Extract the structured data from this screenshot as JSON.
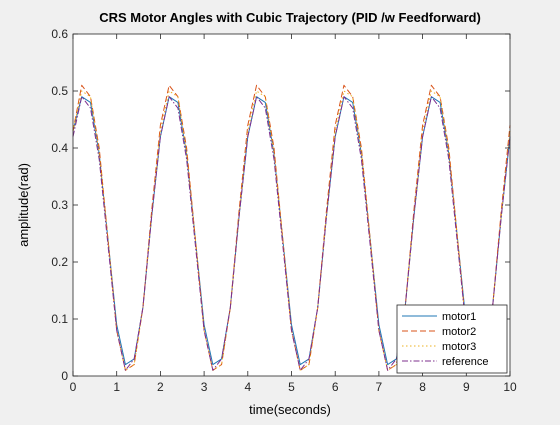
{
  "chart_data": {
    "type": "line",
    "title": "CRS Motor Angles with Cubic Trajectory (PID /w Feedforward)",
    "xlabel": "time(seconds)",
    "ylabel": "amplitude(rad)",
    "xlim": [
      0,
      10
    ],
    "ylim": [
      0,
      0.6
    ],
    "x_ticks": [
      0,
      1,
      2,
      3,
      4,
      5,
      6,
      7,
      8,
      9,
      10
    ],
    "x_tick_labels": [
      "0",
      "1",
      "2",
      "3",
      "4",
      "5",
      "6",
      "7",
      "8",
      "9",
      "10"
    ],
    "y_ticks": [
      0,
      0.1,
      0.2,
      0.3,
      0.4,
      0.5,
      0.6
    ],
    "y_tick_labels": [
      "0",
      "0.1",
      "0.2",
      "0.3",
      "0.4",
      "0.5",
      "0.6"
    ],
    "grid": false,
    "legend_position": "bottom-right",
    "x": [
      0,
      0.2,
      0.4,
      0.6,
      0.8,
      1.0,
      1.2,
      1.4,
      1.6,
      1.8,
      2.0,
      2.2,
      2.4,
      2.6,
      2.8,
      3.0,
      3.2,
      3.4,
      3.6,
      3.8,
      4.0,
      4.2,
      4.4,
      4.6,
      4.8,
      5.0,
      5.2,
      5.4,
      5.6,
      5.8,
      6.0,
      6.2,
      6.4,
      6.6,
      6.8,
      7.0,
      7.2,
      7.4,
      7.6,
      7.8,
      8.0,
      8.2,
      8.4,
      8.6,
      8.8,
      9.0,
      9.2,
      9.4,
      9.6,
      9.8,
      10.0
    ],
    "series": [
      {
        "name": "motor1",
        "color": "#1f77b4",
        "style": "solid",
        "values": [
          0.43,
          0.49,
          0.48,
          0.39,
          0.24,
          0.09,
          0.02,
          0.03,
          0.12,
          0.28,
          0.42,
          0.49,
          0.48,
          0.39,
          0.24,
          0.09,
          0.02,
          0.03,
          0.12,
          0.28,
          0.42,
          0.49,
          0.48,
          0.39,
          0.24,
          0.09,
          0.02,
          0.03,
          0.12,
          0.28,
          0.42,
          0.49,
          0.48,
          0.39,
          0.24,
          0.09,
          0.02,
          0.03,
          0.12,
          0.28,
          0.42,
          0.49,
          0.48,
          0.39,
          0.24,
          0.09,
          0.02,
          0.03,
          0.12,
          0.28,
          0.42
        ]
      },
      {
        "name": "motor2",
        "color": "#d95319",
        "style": "dashed",
        "values": [
          0.43,
          0.51,
          0.49,
          0.4,
          0.24,
          0.08,
          0.01,
          0.02,
          0.12,
          0.29,
          0.44,
          0.51,
          0.49,
          0.4,
          0.24,
          0.08,
          0.01,
          0.02,
          0.12,
          0.29,
          0.44,
          0.51,
          0.49,
          0.4,
          0.24,
          0.08,
          0.01,
          0.02,
          0.12,
          0.29,
          0.44,
          0.51,
          0.49,
          0.4,
          0.24,
          0.08,
          0.01,
          0.02,
          0.12,
          0.29,
          0.44,
          0.51,
          0.49,
          0.4,
          0.24,
          0.08,
          0.01,
          0.02,
          0.12,
          0.29,
          0.44
        ]
      },
      {
        "name": "motor3",
        "color": "#edb120",
        "style": "dotted",
        "values": [
          0.43,
          0.5,
          0.49,
          0.39,
          0.24,
          0.08,
          0.01,
          0.02,
          0.12,
          0.28,
          0.43,
          0.5,
          0.49,
          0.39,
          0.24,
          0.08,
          0.01,
          0.02,
          0.12,
          0.28,
          0.43,
          0.5,
          0.49,
          0.39,
          0.24,
          0.08,
          0.01,
          0.02,
          0.12,
          0.28,
          0.43,
          0.5,
          0.49,
          0.39,
          0.24,
          0.08,
          0.01,
          0.02,
          0.12,
          0.28,
          0.43,
          0.5,
          0.49,
          0.39,
          0.24,
          0.08,
          0.01,
          0.02,
          0.12,
          0.28,
          0.43
        ]
      },
      {
        "name": "reference",
        "color": "#7e2f8e",
        "style": "dashdot",
        "values": [
          0.42,
          0.49,
          0.47,
          0.38,
          0.23,
          0.08,
          0.01,
          0.03,
          0.12,
          0.28,
          0.42,
          0.49,
          0.47,
          0.38,
          0.23,
          0.08,
          0.01,
          0.03,
          0.12,
          0.28,
          0.42,
          0.49,
          0.47,
          0.38,
          0.23,
          0.08,
          0.01,
          0.03,
          0.12,
          0.28,
          0.42,
          0.49,
          0.47,
          0.38,
          0.23,
          0.08,
          0.01,
          0.03,
          0.12,
          0.28,
          0.42,
          0.49,
          0.47,
          0.38,
          0.23,
          0.08,
          0.01,
          0.03,
          0.12,
          0.28,
          0.42
        ]
      }
    ]
  }
}
